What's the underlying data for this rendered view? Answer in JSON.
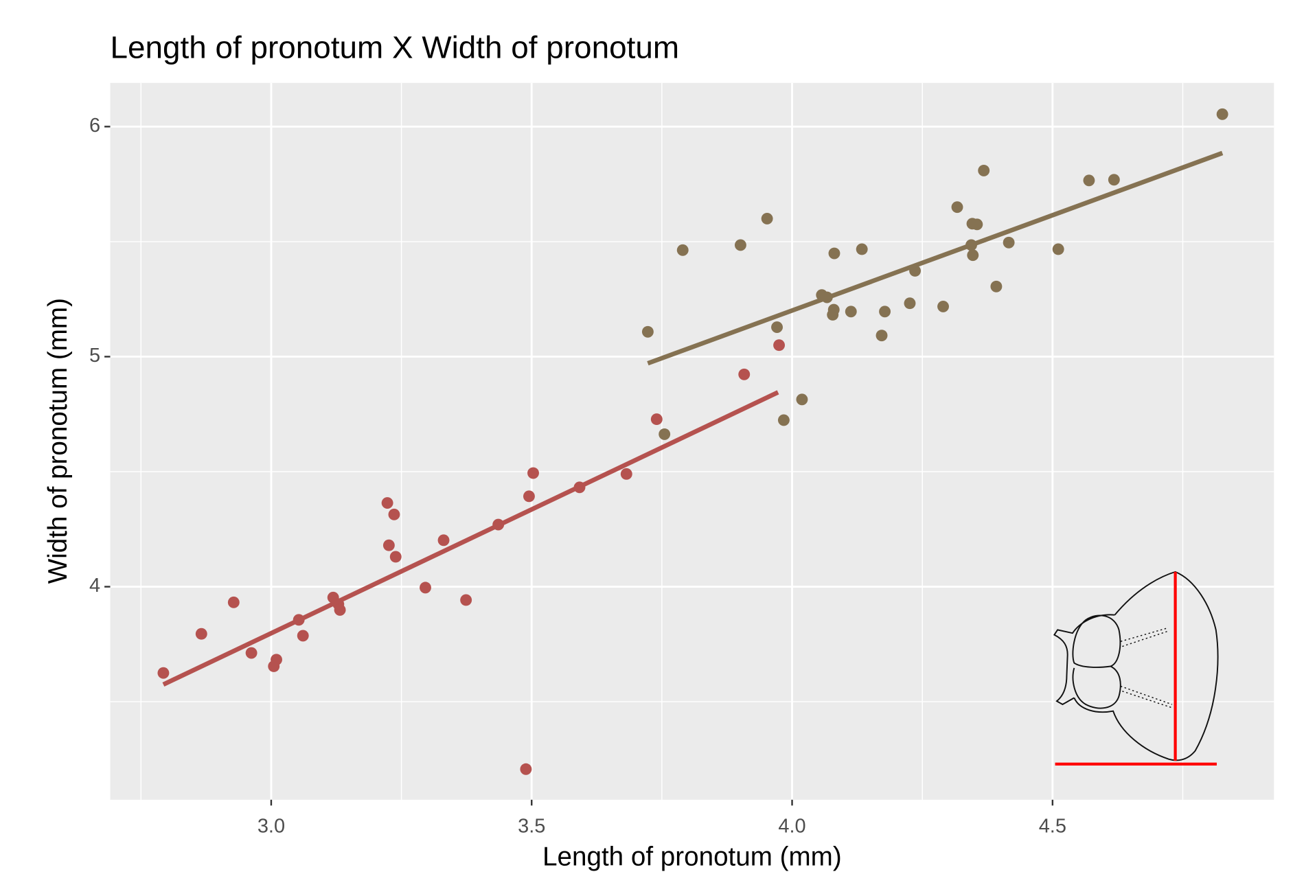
{
  "chart_data": {
    "type": "scatter",
    "title": "Length of pronotum X Width of pronotum",
    "x_label": "Length of pronotum (mm)",
    "y_label": "Width of pronotum (mm)",
    "xlim": [
      2.691,
      4.925
    ],
    "ylim": [
      3.074,
      6.19
    ],
    "xticks": [
      {
        "value": 3,
        "label": "3.0"
      },
      3.5,
      {
        "value": 4,
        "label": "4.0"
      },
      4.5
    ],
    "yticks": [
      4,
      5,
      6
    ],
    "xminor": [
      2.75,
      3.25,
      3.75,
      4.25,
      4.75
    ],
    "yminor": [
      3.5,
      4.5,
      5.5
    ],
    "grid": true,
    "series": [
      {
        "color": "#b5524f",
        "x": [
          2.793,
          2.866,
          2.928,
          2.962,
          3.005,
          3.01,
          3.053,
          3.061,
          3.119,
          3.129,
          3.132,
          3.223,
          3.236,
          3.226,
          3.239,
          3.296,
          3.331,
          3.374,
          3.436,
          3.495,
          3.503,
          3.489,
          3.592,
          3.682,
          3.74,
          3.908,
          3.975
        ],
        "values": [
          3.625,
          3.795,
          3.932,
          3.712,
          3.654,
          3.683,
          3.856,
          3.787,
          3.953,
          3.924,
          3.899,
          4.364,
          4.314,
          4.18,
          4.13,
          3.996,
          4.202,
          3.942,
          4.27,
          4.393,
          4.494,
          3.207,
          4.432,
          4.49,
          4.728,
          4.923,
          5.05
        ],
        "fit": {
          "x": [
            2.793,
            3.973
          ],
          "values": [
            3.575,
            4.845
          ]
        }
      },
      {
        "color": "#857252",
        "x": [
          3.723,
          3.755,
          3.79,
          3.901,
          3.952,
          3.971,
          3.984,
          4.019,
          4.057,
          4.067,
          4.08,
          4.078,
          4.081,
          4.113,
          4.134,
          4.172,
          4.178,
          4.226,
          4.236,
          4.29,
          4.317,
          4.346,
          4.355,
          4.344,
          4.347,
          4.368,
          4.392,
          4.416,
          4.511,
          4.57,
          4.618,
          4.826
        ],
        "values": [
          5.108,
          4.663,
          5.463,
          5.485,
          5.6,
          5.128,
          4.724,
          4.814,
          5.268,
          5.258,
          5.204,
          5.182,
          5.449,
          5.196,
          5.467,
          5.092,
          5.196,
          5.232,
          5.373,
          5.218,
          5.65,
          5.578,
          5.575,
          5.485,
          5.441,
          5.809,
          5.305,
          5.496,
          5.467,
          5.766,
          5.769,
          6.054
        ],
        "fit": {
          "x": [
            3.723,
            4.826
          ],
          "values": [
            4.971,
            5.885
          ]
        }
      }
    ]
  }
}
